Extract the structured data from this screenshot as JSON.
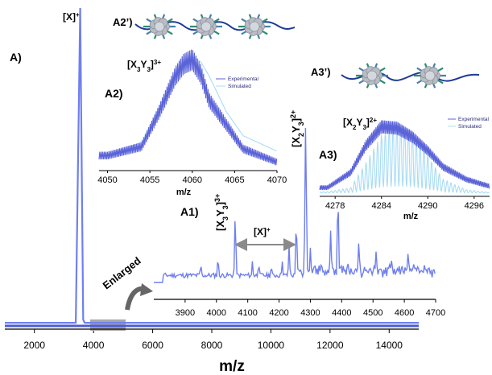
{
  "colors": {
    "main": "#6f7ff0",
    "experimental": "#5b63d8",
    "simulated": "#a9dcf5",
    "arrow": "#8a8a8a",
    "enlarged_box": "#a8a8a8"
  },
  "icons": {
    "molecule": "molecular-structure-icon",
    "curved_arrow": "curved-arrow-icon",
    "double_arrow": "double-arrow-icon"
  },
  "panel_labels": {
    "a": "A)",
    "a1": "A1)",
    "a2": "A2)",
    "a2_prime": "A2’)",
    "a3": "A3)",
    "a3_prime": "A3’)"
  },
  "annotations": {
    "x_plus_top": "[X]+",
    "x_plus_gap": "[X]+",
    "x3y3_3plus": "[X3Y3]3+",
    "x2y3_2plus": "[X2Y3]2+",
    "enlarged": "Enlarged"
  },
  "chart_data": [
    {
      "id": "A",
      "type": "line",
      "xlabel": "m/z",
      "ylabel": "",
      "xlim": [
        1000,
        15000
      ],
      "xticks": [
        2000,
        4000,
        6000,
        8000,
        10000,
        12000,
        14000
      ],
      "grid": false,
      "series": [
        {
          "x": [
            1000,
            3400,
            3550,
            3650,
            3700,
            15000
          ],
          "y": [
            0.01,
            0.01,
            1.0,
            0.02,
            0.01,
            0.01
          ]
        }
      ]
    },
    {
      "id": "A1",
      "type": "line",
      "xlabel": "",
      "ylabel": "",
      "xlim": [
        3800,
        4700
      ],
      "xticks": [
        3900,
        4000,
        4100,
        4200,
        4300,
        4400,
        4500,
        4600,
        4700
      ],
      "grid": false,
      "peaks": [
        {
          "x": 3843,
          "y": 0.02
        },
        {
          "x": 3950,
          "y": 0.12
        },
        {
          "x": 4005,
          "y": 0.16
        },
        {
          "x": 4060,
          "y": 0.42
        },
        {
          "x": 4115,
          "y": 0.14
        },
        {
          "x": 4135,
          "y": 0.12
        },
        {
          "x": 4175,
          "y": 0.11
        },
        {
          "x": 4210,
          "y": 0.14
        },
        {
          "x": 4232,
          "y": 0.24
        },
        {
          "x": 4255,
          "y": 0.32
        },
        {
          "x": 4285,
          "y": 1.0
        },
        {
          "x": 4300,
          "y": 0.22
        },
        {
          "x": 4338,
          "y": 0.1
        },
        {
          "x": 4365,
          "y": 0.28
        },
        {
          "x": 4388,
          "y": 0.52
        },
        {
          "x": 4455,
          "y": 0.25
        },
        {
          "x": 4510,
          "y": 0.18
        },
        {
          "x": 4560,
          "y": 0.15
        },
        {
          "x": 4612,
          "y": 0.14
        },
        {
          "x": 4665,
          "y": 0.08
        }
      ]
    },
    {
      "id": "A2",
      "type": "line",
      "xlabel": "m/z",
      "ylabel": "",
      "xlim": [
        4049,
        4070
      ],
      "xticks": [
        4050,
        4055,
        4060,
        4065,
        4070
      ],
      "grid": false,
      "legend": {
        "entries": [
          "Experimental",
          "Simulated"
        ],
        "position": "top-right"
      },
      "series": [
        {
          "name": "Experimental",
          "x": [
            4050,
            4054,
            4056,
            4058,
            4059,
            4060,
            4061,
            4062,
            4064,
            4066,
            4070
          ],
          "y": [
            0.1,
            0.18,
            0.48,
            0.82,
            0.93,
            0.97,
            0.84,
            0.6,
            0.38,
            0.16,
            0.04
          ]
        },
        {
          "name": "Simulated",
          "x": [
            4050,
            4054,
            4056,
            4058,
            4059,
            4060,
            4061,
            4062,
            4064,
            4066,
            4070
          ],
          "y": [
            0.1,
            0.22,
            0.52,
            0.85,
            0.95,
            1.0,
            0.95,
            0.82,
            0.5,
            0.28,
            0.14
          ]
        }
      ]
    },
    {
      "id": "A3",
      "type": "line",
      "xlabel": "m/z",
      "ylabel": "",
      "xlim": [
        4276,
        4298
      ],
      "xticks": [
        4278,
        4284,
        4290,
        4296
      ],
      "grid": false,
      "legend": {
        "entries": [
          "Experimental",
          "Simulated"
        ],
        "position": "top-right"
      },
      "series": [
        {
          "name": "Experimental",
          "x": [
            4277,
            4280,
            4282,
            4284,
            4286,
            4288,
            4290,
            4292,
            4295,
            4298
          ],
          "y": [
            0.08,
            0.3,
            0.7,
            0.97,
            0.95,
            0.82,
            0.62,
            0.38,
            0.2,
            0.1
          ]
        },
        {
          "name": "Simulated",
          "x": [
            4277,
            4280,
            4282,
            4284,
            4286,
            4288,
            4290,
            4292,
            4295,
            4298
          ],
          "y": [
            0.02,
            0.08,
            0.45,
            0.85,
            1.0,
            0.9,
            0.55,
            0.2,
            0.05,
            0.01
          ]
        }
      ]
    }
  ]
}
